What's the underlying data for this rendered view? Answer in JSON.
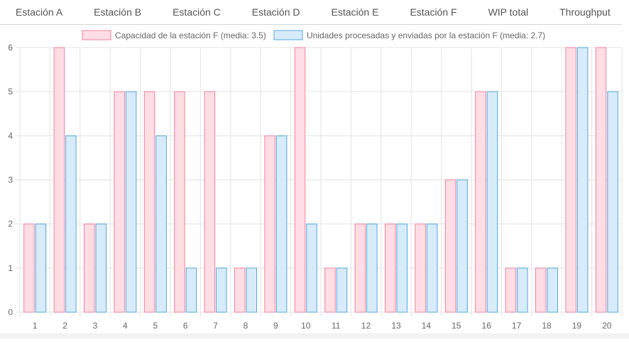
{
  "tabs": [
    {
      "label": "Estación A"
    },
    {
      "label": "Estación B"
    },
    {
      "label": "Estación C"
    },
    {
      "label": "Estación D"
    },
    {
      "label": "Estación E"
    },
    {
      "label": "Estación F"
    },
    {
      "label": "WIP total"
    },
    {
      "label": "Throughput"
    }
  ],
  "colors": {
    "capacity_fill": "#ffdde4",
    "capacity_border": "#f0829c",
    "processed_fill": "#d7ebfa",
    "processed_border": "#52a7df",
    "grid": "#e3e3e3"
  },
  "chart_data": {
    "type": "bar",
    "categories": [
      "1",
      "2",
      "3",
      "4",
      "5",
      "6",
      "7",
      "8",
      "9",
      "10",
      "11",
      "12",
      "13",
      "14",
      "15",
      "16",
      "17",
      "18",
      "19",
      "20"
    ],
    "series": [
      {
        "name": "Capacidad de la estación F (media: 3.5)",
        "values": [
          2,
          6,
          2,
          5,
          5,
          5,
          5,
          1,
          4,
          6,
          1,
          2,
          2,
          2,
          3,
          5,
          1,
          1,
          6,
          6
        ]
      },
      {
        "name": "Unidades procesadas y enviadas por la estación F (media: 2.7)",
        "values": [
          2,
          4,
          2,
          5,
          4,
          1,
          1,
          1,
          4,
          2,
          1,
          2,
          2,
          2,
          3,
          5,
          1,
          1,
          6,
          5
        ]
      }
    ],
    "yticks": [
      "0",
      "1",
      "2",
      "3",
      "4",
      "5",
      "6"
    ],
    "ylim": [
      0,
      6
    ],
    "legend_position": "top-center",
    "grid": true
  }
}
